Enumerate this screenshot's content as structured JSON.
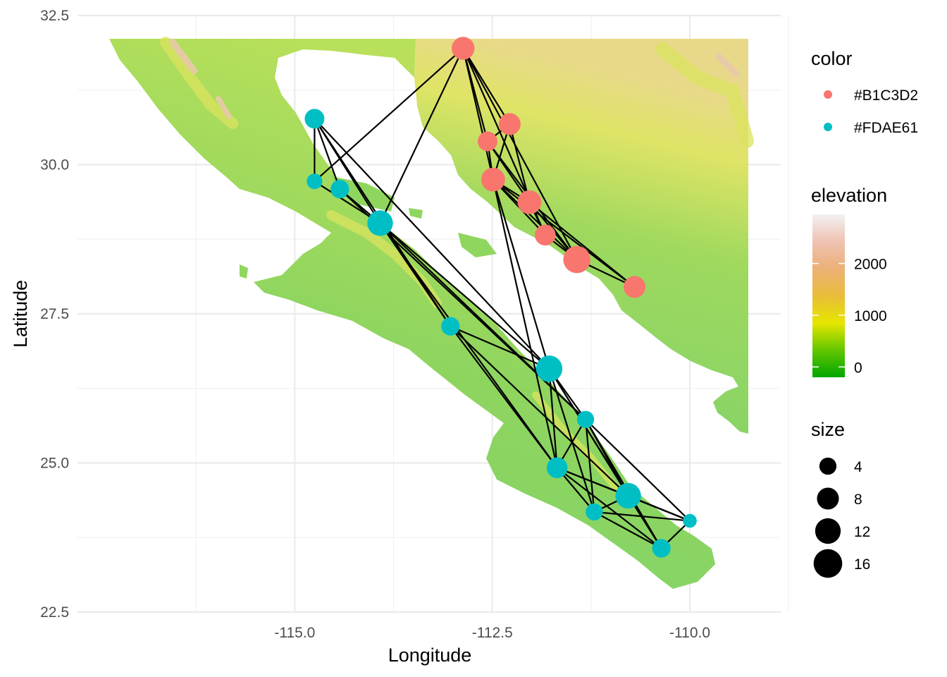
{
  "chart_data": {
    "type": "scatter",
    "title": "",
    "xlabel": "Longitude",
    "ylabel": "Latitude",
    "xlim": [
      -117.75,
      -108.85
    ],
    "ylim": [
      22.5,
      32.5
    ],
    "x_ticks": [
      -115.0,
      -112.5,
      -110.0
    ],
    "x_tick_labels": [
      "-115.0",
      "-112.5",
      "-110.0"
    ],
    "y_ticks": [
      22.5,
      25.0,
      27.5,
      30.0,
      32.5
    ],
    "y_tick_labels": [
      "22.5",
      "25.0",
      "27.5",
      "30.0",
      "32.5"
    ],
    "grid": true,
    "background": "elevation raster",
    "legends": {
      "color": {
        "title": "color",
        "entries": [
          {
            "label": "#B1C3D2",
            "color": "#F8766D"
          },
          {
            "label": "#FDAE61",
            "color": "#00BFC4"
          }
        ]
      },
      "elevation": {
        "title": "elevation",
        "ticks": [
          0,
          1000,
          2000
        ],
        "tick_labels": [
          "0",
          "1000",
          "2000"
        ],
        "range": [
          -200,
          2950
        ],
        "gradient": [
          "#00A600",
          "#63C600",
          "#E6E600",
          "#E9BD3A",
          "#ECB176",
          "#EFC2B3",
          "#F2F2F2"
        ]
      },
      "size": {
        "title": "size",
        "values": [
          4,
          8,
          12,
          16
        ],
        "labels": [
          "4",
          "8",
          "12",
          "16"
        ]
      }
    },
    "series": [
      {
        "color_label": "#B1C3D2",
        "points": [
          {
            "x": -112.87,
            "y": 31.95,
            "size": 9
          },
          {
            "x": -112.28,
            "y": 30.68,
            "size": 8
          },
          {
            "x": -112.56,
            "y": 30.39,
            "size": 6
          },
          {
            "x": -112.49,
            "y": 29.75,
            "size": 10
          },
          {
            "x": -112.03,
            "y": 29.37,
            "size": 10
          },
          {
            "x": -111.83,
            "y": 28.82,
            "size": 7
          },
          {
            "x": -111.43,
            "y": 28.41,
            "size": 14
          },
          {
            "x": -110.7,
            "y": 27.95,
            "size": 8
          }
        ]
      },
      {
        "color_label": "#FDAE61",
        "points": [
          {
            "x": -114.75,
            "y": 30.77,
            "size": 6
          },
          {
            "x": -114.75,
            "y": 29.72,
            "size": 3
          },
          {
            "x": -114.43,
            "y": 29.59,
            "size": 5
          },
          {
            "x": -113.92,
            "y": 29.02,
            "size": 12
          },
          {
            "x": -113.03,
            "y": 27.29,
            "size": 5
          },
          {
            "x": -111.78,
            "y": 26.58,
            "size": 13
          },
          {
            "x": -111.32,
            "y": 25.73,
            "size": 4
          },
          {
            "x": -111.68,
            "y": 24.92,
            "size": 7
          },
          {
            "x": -110.78,
            "y": 24.45,
            "size": 12
          },
          {
            "x": -111.21,
            "y": 24.18,
            "size": 4
          },
          {
            "x": -110.0,
            "y": 24.03,
            "size": 2
          },
          {
            "x": -110.36,
            "y": 23.57,
            "size": 5
          }
        ]
      }
    ],
    "edges": [
      [
        -112.87,
        31.95,
        -112.28,
        30.68
      ],
      [
        -112.87,
        31.95,
        -112.56,
        30.39
      ],
      [
        -112.87,
        31.95,
        -112.49,
        29.75
      ],
      [
        -112.87,
        31.95,
        -113.92,
        29.02
      ],
      [
        -112.87,
        31.95,
        -114.75,
        29.72
      ],
      [
        -112.87,
        31.95,
        -111.83,
        28.82
      ],
      [
        -112.87,
        31.95,
        -111.43,
        28.41
      ],
      [
        -112.28,
        30.68,
        -112.56,
        30.39
      ],
      [
        -112.28,
        30.68,
        -112.49,
        29.75
      ],
      [
        -112.28,
        30.68,
        -112.03,
        29.37
      ],
      [
        -112.56,
        30.39,
        -112.49,
        29.75
      ],
      [
        -112.56,
        30.39,
        -112.03,
        29.37
      ],
      [
        -112.56,
        30.39,
        -111.43,
        28.41
      ],
      [
        -112.49,
        29.75,
        -112.03,
        29.37
      ],
      [
        -112.49,
        29.75,
        -111.83,
        28.82
      ],
      [
        -112.49,
        29.75,
        -111.43,
        28.41
      ],
      [
        -112.49,
        29.75,
        -110.7,
        27.95
      ],
      [
        -112.49,
        29.75,
        -111.78,
        26.58
      ],
      [
        -112.49,
        29.75,
        -111.68,
        24.92
      ],
      [
        -112.03,
        29.37,
        -111.43,
        28.41
      ],
      [
        -112.03,
        29.37,
        -110.7,
        27.95
      ],
      [
        -112.03,
        29.37,
        -111.83,
        28.82
      ],
      [
        -111.83,
        28.82,
        -111.43,
        28.41
      ],
      [
        -111.43,
        28.41,
        -110.7,
        27.95
      ],
      [
        -114.75,
        30.77,
        -114.75,
        29.72
      ],
      [
        -114.75,
        30.77,
        -114.43,
        29.59
      ],
      [
        -114.75,
        30.77,
        -113.92,
        29.02
      ],
      [
        -114.75,
        30.77,
        -113.03,
        27.29
      ],
      [
        -114.75,
        30.77,
        -111.78,
        26.58
      ],
      [
        -114.75,
        29.72,
        -113.92,
        29.02
      ],
      [
        -114.43,
        29.59,
        -113.92,
        29.02
      ],
      [
        -114.43,
        29.59,
        -111.32,
        25.73
      ],
      [
        -113.92,
        29.02,
        -113.03,
        27.29
      ],
      [
        -113.92,
        29.02,
        -111.78,
        26.58
      ],
      [
        -113.92,
        29.02,
        -111.32,
        25.73
      ],
      [
        -113.92,
        29.02,
        -111.68,
        24.92
      ],
      [
        -113.03,
        27.29,
        -111.78,
        26.58
      ],
      [
        -113.03,
        27.29,
        -111.68,
        24.92
      ],
      [
        -113.03,
        27.29,
        -110.78,
        24.45
      ],
      [
        -111.78,
        26.58,
        -111.32,
        25.73
      ],
      [
        -111.78,
        26.58,
        -111.68,
        24.92
      ],
      [
        -111.78,
        26.58,
        -111.21,
        24.18
      ],
      [
        -111.78,
        26.58,
        -110.36,
        23.57
      ],
      [
        -111.78,
        26.58,
        -110.78,
        24.45
      ],
      [
        -111.32,
        25.73,
        -111.68,
        24.92
      ],
      [
        -111.32,
        25.73,
        -111.21,
        24.18
      ],
      [
        -111.32,
        25.73,
        -110.0,
        24.03
      ],
      [
        -111.32,
        25.73,
        -110.36,
        23.57
      ],
      [
        -111.32,
        25.73,
        -110.78,
        24.45
      ],
      [
        -111.68,
        24.92,
        -111.21,
        24.18
      ],
      [
        -111.68,
        24.92,
        -110.78,
        24.45
      ],
      [
        -111.68,
        24.92,
        -110.36,
        23.57
      ],
      [
        -111.68,
        24.92,
        -110.0,
        24.03
      ],
      [
        -111.21,
        24.18,
        -110.78,
        24.45
      ],
      [
        -111.21,
        24.18,
        -110.0,
        24.03
      ],
      [
        -111.21,
        24.18,
        -110.36,
        23.57
      ],
      [
        -110.78,
        24.45,
        -110.0,
        24.03
      ],
      [
        -110.78,
        24.45,
        -110.36,
        23.57
      ],
      [
        -110.0,
        24.03,
        -110.36,
        23.57
      ]
    ]
  }
}
